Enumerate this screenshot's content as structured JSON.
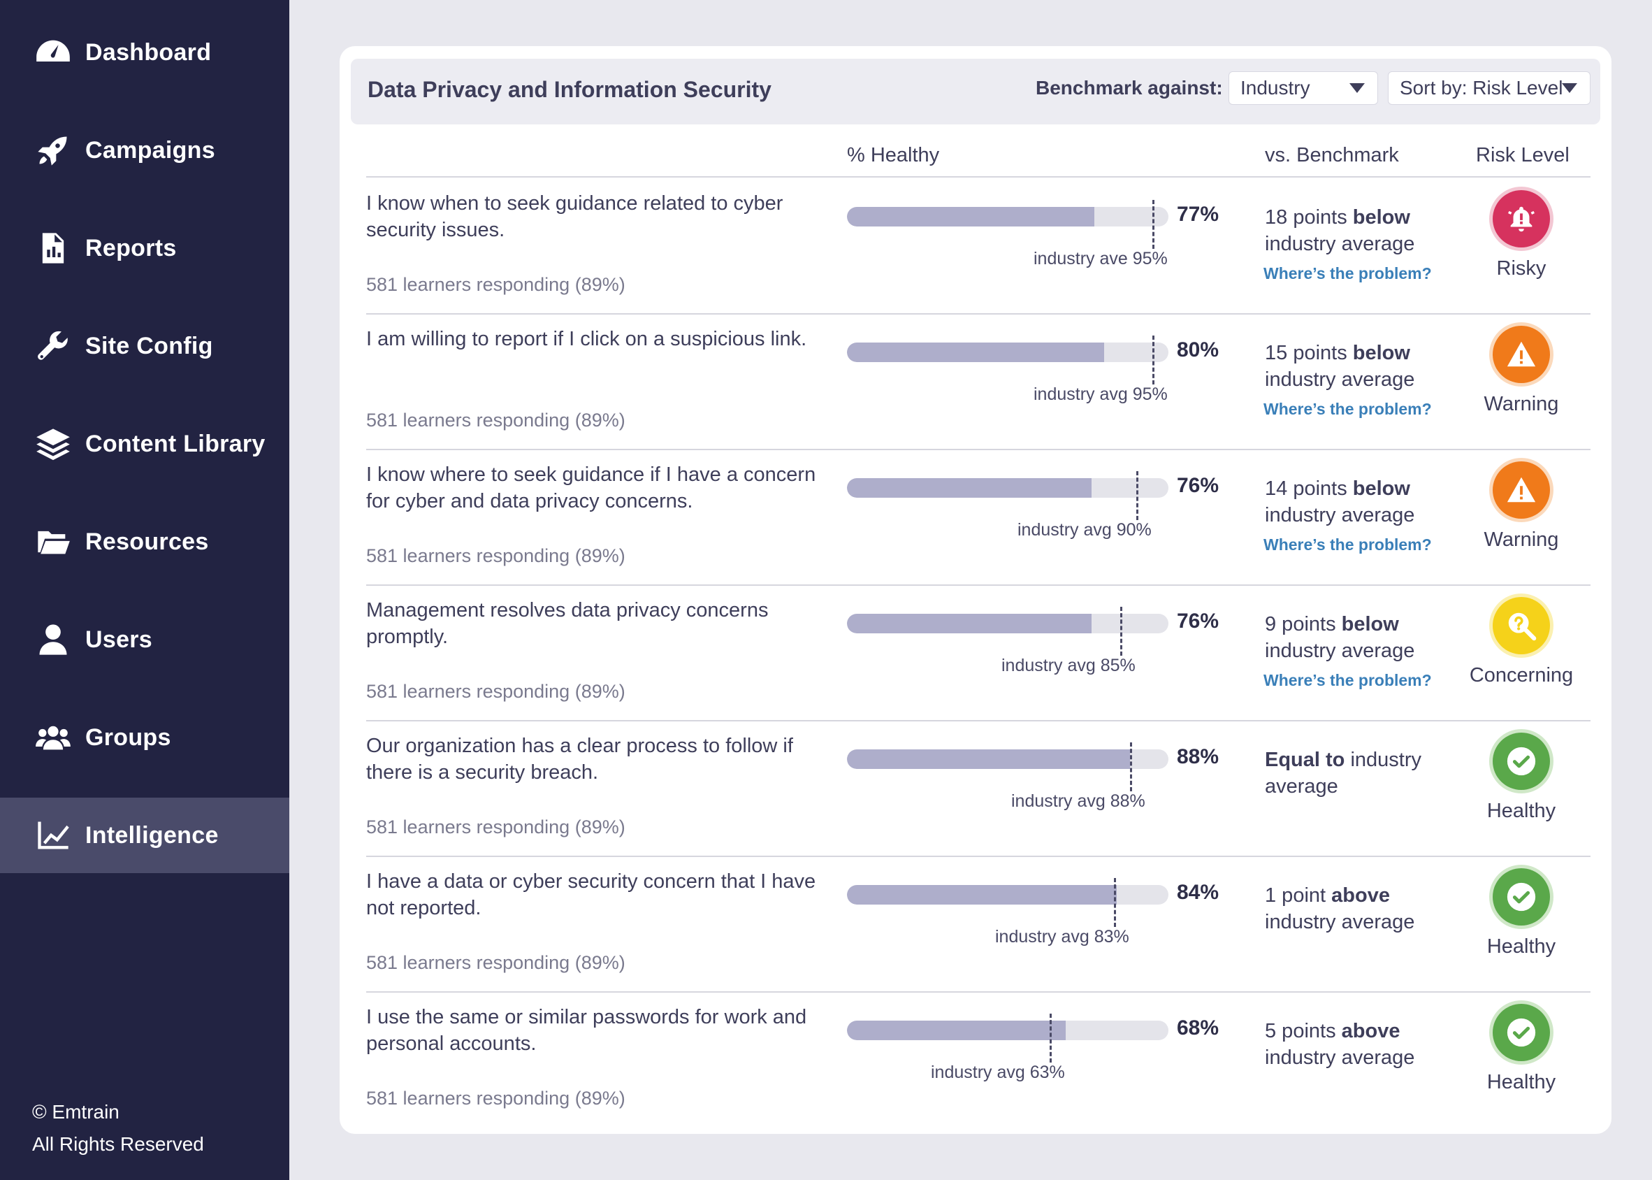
{
  "sidebar": {
    "items": [
      {
        "label": "Dashboard",
        "icon": "gauge-icon"
      },
      {
        "label": "Campaigns",
        "icon": "rocket-icon"
      },
      {
        "label": "Reports",
        "icon": "report-icon"
      },
      {
        "label": "Site Config",
        "icon": "wrench-icon"
      },
      {
        "label": "Content Library",
        "icon": "layers-icon"
      },
      {
        "label": "Resources",
        "icon": "folder-icon"
      },
      {
        "label": "Users",
        "icon": "user-icon"
      },
      {
        "label": "Groups",
        "icon": "group-icon"
      },
      {
        "label": "Intelligence",
        "icon": "chart-line-icon"
      }
    ],
    "active": "Intelligence",
    "copyright_line1": "© Emtrain",
    "copyright_line2": "All Rights Reserved"
  },
  "header": {
    "title": "Data Privacy and Information Security",
    "benchmark_label": "Benchmark against:",
    "benchmark_value": "Industry",
    "sort_value": "Sort by: Risk Level"
  },
  "columns": {
    "healthy": "% Healthy",
    "benchmark": "vs. Benchmark",
    "risk": "Risk Level"
  },
  "colors": {
    "sidebar_bg": "#222342",
    "active_bg": "#4a4b6a",
    "risky": "#d6325e",
    "warning": "#f07a1a",
    "concerning": "#f5d21a",
    "healthy": "#5aa84a",
    "link": "#3a7fb8"
  },
  "rows": [
    {
      "question": "I know when to seek guidance related to cyber security issues.",
      "responding": "581 learners responding (89%)",
      "healthy_pct": 77,
      "healthy_label": "77%",
      "benchmark_pct": 95,
      "benchmark_label": "industry ave 95%",
      "vs_pre": "18 points ",
      "vs_bold": "below",
      "vs_post": " industry average",
      "problem_link": "Where’s the problem?",
      "risk": "Risky",
      "risk_icon": "bell-alert-icon"
    },
    {
      "question": "I am willing to report if I click on a suspicious link.",
      "responding": "581 learners responding (89%)",
      "healthy_pct": 80,
      "healthy_label": "80%",
      "benchmark_pct": 95,
      "benchmark_label": "industry avg 95%",
      "vs_pre": "15 points ",
      "vs_bold": "below",
      "vs_post": " industry average",
      "problem_link": "Where’s the problem?",
      "risk": "Warning",
      "risk_icon": "warning-triangle-icon"
    },
    {
      "question": "I know where to seek guidance if I have a concern for cyber and data privacy concerns.",
      "responding": "581 learners responding (89%)",
      "healthy_pct": 76,
      "healthy_label": "76%",
      "benchmark_pct": 90,
      "benchmark_label": "industry avg 90%",
      "vs_pre": "14 points ",
      "vs_bold": "below",
      "vs_post": " industry average",
      "problem_link": "Where’s the problem?",
      "risk": "Warning",
      "risk_icon": "warning-triangle-icon"
    },
    {
      "question": "Management resolves data privacy concerns promptly.",
      "responding": "581 learners responding (89%)",
      "healthy_pct": 76,
      "healthy_label": "76%",
      "benchmark_pct": 85,
      "benchmark_label": "industry avg 85%",
      "vs_pre": "9 points ",
      "vs_bold": "below",
      "vs_post": " industry average",
      "problem_link": "Where’s the problem?",
      "risk": "Concerning",
      "risk_icon": "search-question-icon"
    },
    {
      "question": "Our organization has a clear process to follow if there is a security breach.",
      "responding": "581 learners responding (89%)",
      "healthy_pct": 88,
      "healthy_label": "88%",
      "benchmark_pct": 88,
      "benchmark_label": "industry avg 88%",
      "vs_pre": "",
      "vs_bold": "Equal to",
      "vs_post": " industry average",
      "problem_link": "",
      "risk": "Healthy",
      "risk_icon": "check-circle-icon"
    },
    {
      "question": "I have a data or cyber security concern that I have not reported.",
      "responding": "581 learners responding (89%)",
      "healthy_pct": 84,
      "healthy_label": "84%",
      "benchmark_pct": 83,
      "benchmark_label": "industry avg 83%",
      "vs_pre": "1 point ",
      "vs_bold": "above",
      "vs_post": " industry average",
      "problem_link": "",
      "risk": "Healthy",
      "risk_icon": "check-circle-icon"
    },
    {
      "question": "I use the same or similar passwords for work and personal accounts.",
      "responding": "581 learners responding (89%)",
      "healthy_pct": 68,
      "healthy_label": "68%",
      "benchmark_pct": 63,
      "benchmark_label": "industry avg 63%",
      "vs_pre": "5 points ",
      "vs_bold": "above",
      "vs_post": " industry average",
      "problem_link": "",
      "risk": "Healthy",
      "risk_icon": "check-circle-icon"
    }
  ]
}
